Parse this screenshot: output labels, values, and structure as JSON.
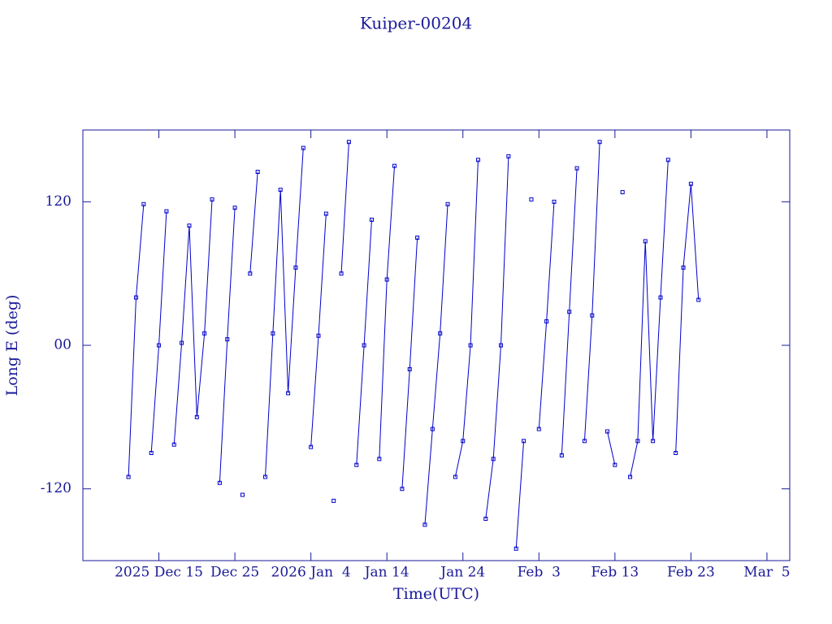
{
  "chart_data": {
    "type": "line",
    "title": "Kuiper-00204",
    "xlabel": "Time(UTC)",
    "ylabel": "Long E (deg)",
    "x": [
      "2025-12-11",
      "2025-12-12",
      "2025-12-13",
      "2025-12-14",
      "2025-12-15",
      "2025-12-16",
      "2025-12-17",
      "2025-12-18",
      "2025-12-19",
      "2025-12-20",
      "2025-12-21",
      "2025-12-22",
      "2025-12-23",
      "2025-12-24",
      "2025-12-25",
      "2025-12-26",
      "2025-12-27",
      "2025-12-28",
      "2025-12-29",
      "2025-12-30",
      "2025-12-31",
      "2026-01-01",
      "2026-01-02",
      "2026-01-03",
      "2026-01-04",
      "2026-01-05",
      "2026-01-06",
      "2026-01-07",
      "2026-01-08",
      "2026-01-09",
      "2026-01-10",
      "2026-01-11",
      "2026-01-12",
      "2026-01-13",
      "2026-01-14",
      "2026-01-15",
      "2026-01-16",
      "2026-01-17",
      "2026-01-18",
      "2026-01-19",
      "2026-01-20",
      "2026-01-21",
      "2026-01-22",
      "2026-01-23",
      "2026-01-24",
      "2026-01-25",
      "2026-01-26",
      "2026-01-27",
      "2026-01-28",
      "2026-01-29",
      "2026-01-30",
      "2026-01-31",
      "2026-02-01",
      "2026-02-02",
      "2026-02-03",
      "2026-02-04",
      "2026-02-05",
      "2026-02-06",
      "2026-02-07",
      "2026-02-08",
      "2026-02-09",
      "2026-02-10",
      "2026-02-11",
      "2026-02-12",
      "2026-02-13",
      "2026-02-14",
      "2026-02-15",
      "2026-02-16",
      "2026-02-17",
      "2026-02-18",
      "2026-02-19",
      "2026-02-20",
      "2026-02-21",
      "2026-02-22",
      "2026-02-23",
      "2026-02-24"
    ],
    "series": [
      {
        "name": "Kuiper-00204",
        "color": "#0000cc",
        "values": [
          -110,
          40,
          118,
          -90,
          0,
          112,
          -83,
          2,
          100,
          -60,
          10,
          122,
          -115,
          5,
          115,
          -125,
          60,
          145,
          -110,
          10,
          130,
          -40,
          65,
          165,
          -85,
          8,
          110,
          -130,
          60,
          170,
          -100,
          0,
          105,
          -95,
          55,
          150,
          -120,
          -20,
          90,
          -150,
          -70,
          10,
          118,
          -110,
          -80,
          0,
          155,
          -145,
          -95,
          0,
          158,
          -170,
          -80,
          122,
          -70,
          20,
          120,
          -92,
          28,
          148,
          -80,
          25,
          170,
          -72,
          -100,
          128,
          -110,
          -80,
          87,
          -80,
          40,
          155,
          -90,
          65,
          135,
          38
        ]
      }
    ],
    "xlim": [
      "2025-12-05",
      "2026-03-08"
    ],
    "xticks": [
      {
        "value": "2025-12-15",
        "label": "2025 Dec 15"
      },
      {
        "value": "2025-12-25",
        "label": "Dec 25"
      },
      {
        "value": "2026-01-04",
        "label": "2026 Jan  4"
      },
      {
        "value": "2026-01-14",
        "label": "Jan 14"
      },
      {
        "value": "2026-01-24",
        "label": "Jan 24"
      },
      {
        "value": "2026-02-03",
        "label": "Feb  3"
      },
      {
        "value": "2026-02-13",
        "label": "Feb 13"
      },
      {
        "value": "2026-02-23",
        "label": "Feb 23"
      },
      {
        "value": "2026-03-05",
        "label": "Mar  5"
      }
    ],
    "ylim": [
      -180,
      180
    ],
    "yticks": [
      -120,
      {
        "value": 0,
        "label": "00"
      },
      120
    ]
  }
}
